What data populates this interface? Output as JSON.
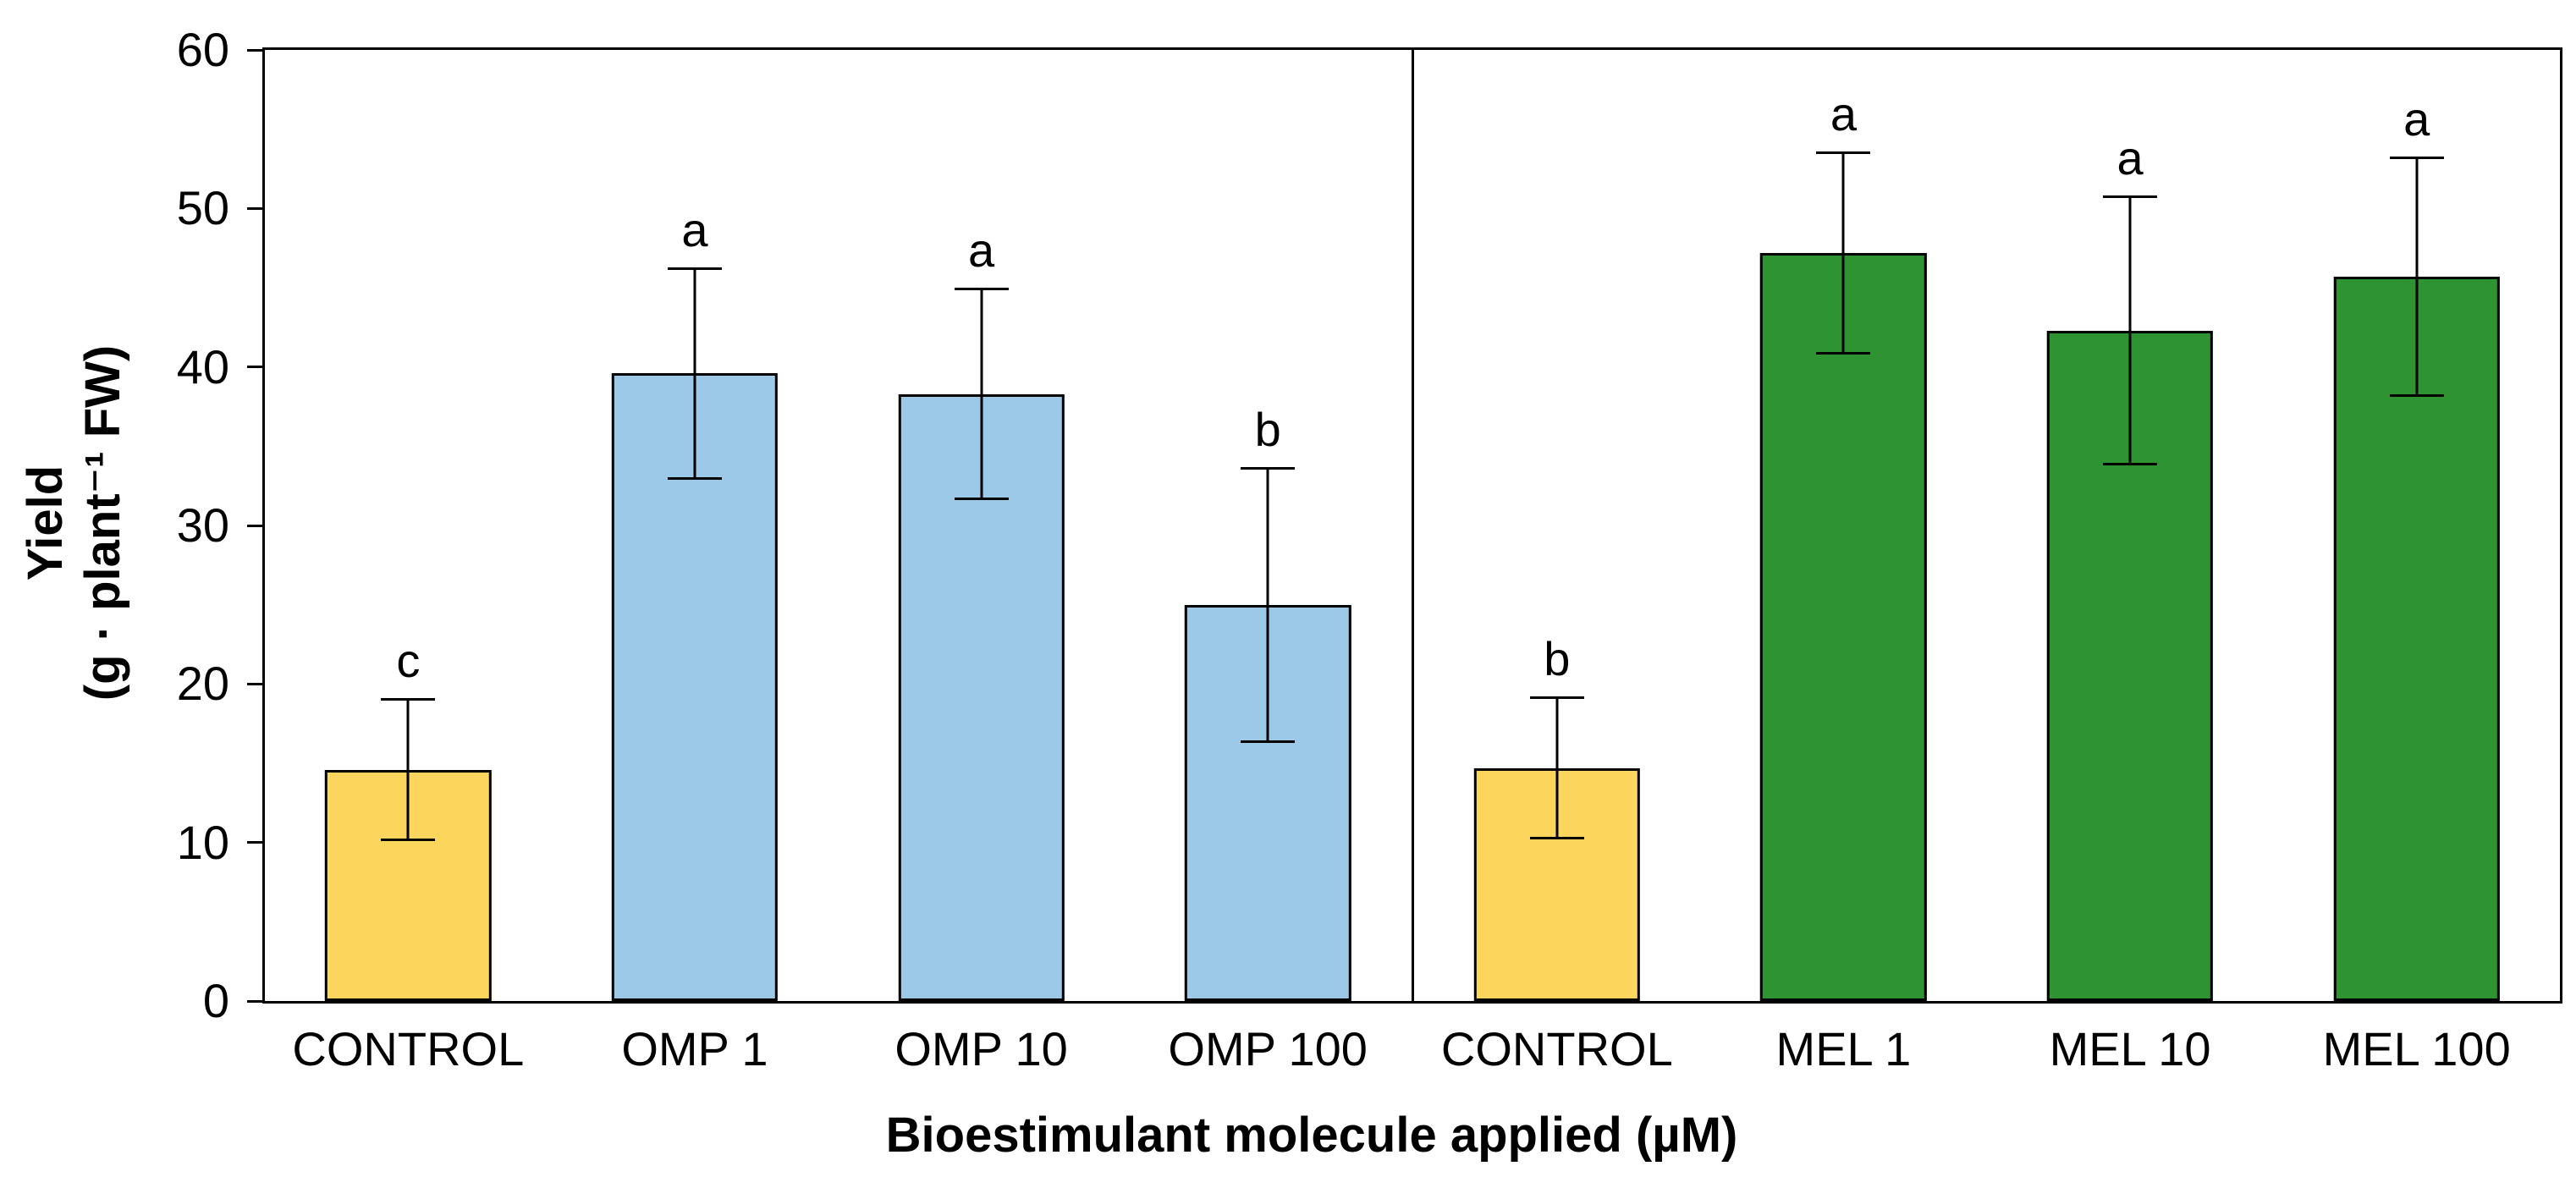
{
  "chart_data": {
    "type": "bar",
    "title": "",
    "ylabel_line1": "Yield",
    "ylabel_line2": "(g · plant⁻¹ FW)",
    "xlabel": "Bioestimulant molecule applied (µM)",
    "ylim": [
      0,
      60
    ],
    "yticks": [
      0,
      10,
      20,
      30,
      40,
      50,
      60
    ],
    "grid": "off",
    "legend": "none",
    "colors": {
      "control": "#FCD65C",
      "omp": "#9DC9E9",
      "mel": "#2E9432",
      "axis": "#000000"
    },
    "panels": [
      {
        "name": "OMP",
        "bars": [
          {
            "category": "CONTROL",
            "value": 14.6,
            "error": 4.5,
            "letter": "c",
            "color": "control"
          },
          {
            "category": "OMP 1",
            "value": 39.6,
            "error": 6.7,
            "letter": "a",
            "color": "omp"
          },
          {
            "category": "OMP 10",
            "value": 38.3,
            "error": 6.7,
            "letter": "a",
            "color": "omp"
          },
          {
            "category": "OMP 100",
            "value": 25.0,
            "error": 8.7,
            "letter": "b",
            "color": "omp"
          }
        ]
      },
      {
        "name": "MEL",
        "bars": [
          {
            "category": "CONTROL",
            "value": 14.7,
            "error": 4.5,
            "letter": "b",
            "color": "control"
          },
          {
            "category": "MEL 1",
            "value": 47.2,
            "error": 6.4,
            "letter": "a",
            "color": "mel"
          },
          {
            "category": "MEL 10",
            "value": 42.3,
            "error": 8.5,
            "letter": "a",
            "color": "mel"
          },
          {
            "category": "MEL 100",
            "value": 45.7,
            "error": 7.6,
            "letter": "a",
            "color": "mel"
          }
        ]
      }
    ]
  }
}
